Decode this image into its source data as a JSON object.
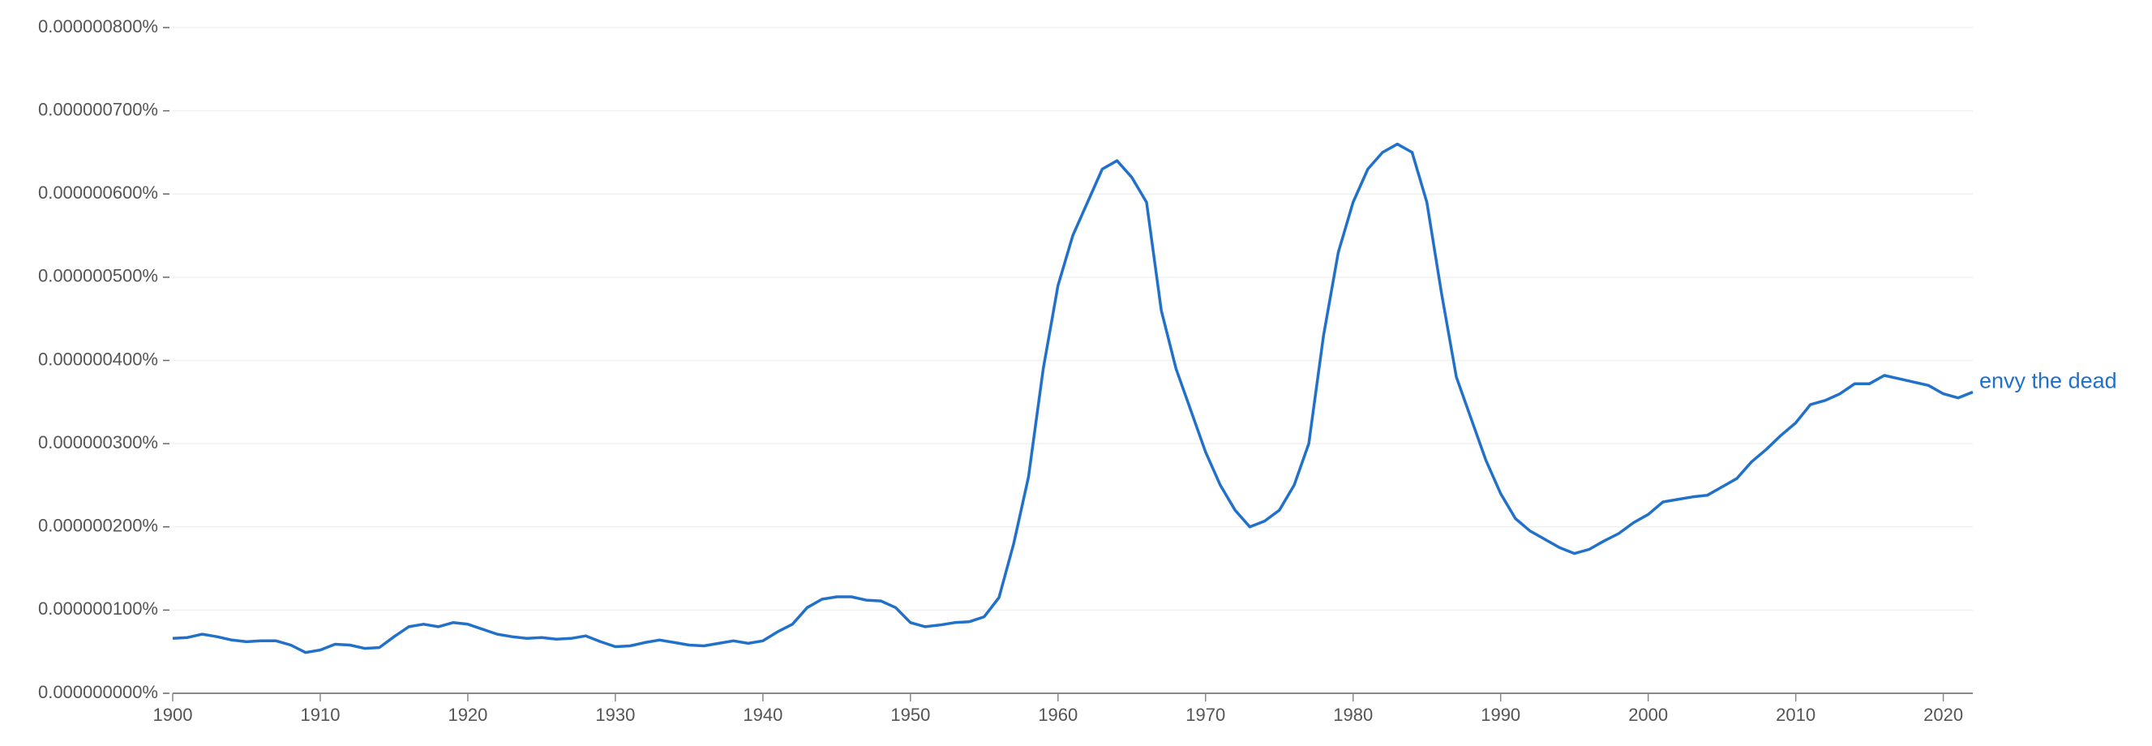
{
  "chart_data": {
    "type": "line",
    "x": [
      1900,
      1901,
      1902,
      1903,
      1904,
      1905,
      1906,
      1907,
      1908,
      1909,
      1910,
      1911,
      1912,
      1913,
      1914,
      1915,
      1916,
      1917,
      1918,
      1919,
      1920,
      1921,
      1922,
      1923,
      1924,
      1925,
      1926,
      1927,
      1928,
      1929,
      1930,
      1931,
      1932,
      1933,
      1934,
      1935,
      1936,
      1937,
      1938,
      1939,
      1940,
      1941,
      1942,
      1943,
      1944,
      1945,
      1946,
      1947,
      1948,
      1949,
      1950,
      1951,
      1952,
      1953,
      1954,
      1955,
      1956,
      1957,
      1958,
      1959,
      1960,
      1961,
      1962,
      1963,
      1964,
      1965,
      1966,
      1967,
      1968,
      1969,
      1970,
      1971,
      1972,
      1973,
      1974,
      1975,
      1976,
      1977,
      1978,
      1979,
      1980,
      1981,
      1982,
      1983,
      1984,
      1985,
      1986,
      1987,
      1988,
      1989,
      1990,
      1991,
      1992,
      1993,
      1994,
      1995,
      1996,
      1997,
      1998,
      1999,
      2000,
      2001,
      2002,
      2003,
      2004,
      2005,
      2006,
      2007,
      2008,
      2009,
      2010,
      2011,
      2012,
      2013,
      2014,
      2015,
      2016,
      2017,
      2018,
      2019,
      2020,
      2021,
      2022
    ],
    "series": [
      {
        "name": "envy the dead",
        "color": "#2170c9",
        "values": [
          6.6e-08,
          6.7e-08,
          7.1e-08,
          6.8e-08,
          6.4e-08,
          6.2e-08,
          6.3e-08,
          6.3e-08,
          5.8e-08,
          4.9e-08,
          5.2e-08,
          5.9e-08,
          5.8e-08,
          5.4e-08,
          5.5e-08,
          6.8e-08,
          8e-08,
          8.3e-08,
          8e-08,
          8.5e-08,
          8.3e-08,
          7.7e-08,
          7.1e-08,
          6.8e-08,
          6.6e-08,
          6.7e-08,
          6.5e-08,
          6.6e-08,
          6.9e-08,
          6.2e-08,
          5.6e-08,
          5.7e-08,
          6.1e-08,
          6.4e-08,
          6.1e-08,
          5.8e-08,
          5.7e-08,
          6e-08,
          6.3e-08,
          6e-08,
          6.3e-08,
          7.4e-08,
          8.3e-08,
          1.03e-07,
          1.13e-07,
          1.16e-07,
          1.16e-07,
          1.12e-07,
          1.11e-07,
          1.03e-07,
          8.5e-08,
          8e-08,
          8.2e-08,
          8.5e-08,
          8.6e-08,
          9.2e-08,
          1.15e-07,
          1.8e-07,
          2.6e-07,
          3.9e-07,
          4.9e-07,
          5.5e-07,
          5.9e-07,
          6.3e-07,
          6.4e-07,
          6.2e-07,
          5.9e-07,
          4.6e-07,
          3.9e-07,
          3.4e-07,
          2.9e-07,
          2.5e-07,
          2.2e-07,
          2e-07,
          2.07e-07,
          2.2e-07,
          2.5e-07,
          3e-07,
          4.3e-07,
          5.3e-07,
          5.9e-07,
          6.3e-07,
          6.5e-07,
          6.6e-07,
          6.5e-07,
          5.9e-07,
          4.8e-07,
          3.8e-07,
          3.3e-07,
          2.8e-07,
          2.4e-07,
          2.1e-07,
          1.95e-07,
          1.85e-07,
          1.75e-07,
          1.68e-07,
          1.73e-07,
          1.83e-07,
          1.92e-07,
          2.05e-07,
          2.15e-07,
          2.3e-07,
          2.33e-07,
          2.36e-07,
          2.38e-07,
          2.48e-07,
          2.58e-07,
          2.78e-07,
          2.93e-07,
          3.1e-07,
          3.25e-07,
          3.47e-07,
          3.52e-07,
          3.6e-07,
          3.72e-07,
          3.72e-07,
          3.82e-07,
          3.78e-07,
          3.74e-07,
          3.7e-07,
          3.6e-07,
          3.55e-07,
          3.62e-07
        ]
      }
    ],
    "xlim": [
      1900,
      2022
    ],
    "xticks": [
      1900,
      1910,
      1920,
      1930,
      1940,
      1950,
      1960,
      1970,
      1980,
      1990,
      2000,
      2010,
      2020
    ],
    "ylim": [
      0,
      8e-07
    ],
    "yticks": [
      {
        "value": 0,
        "label": "0.000000000%"
      },
      {
        "value": 1e-07,
        "label": "0.000000100%"
      },
      {
        "value": 2e-07,
        "label": "0.000000200%"
      },
      {
        "value": 3e-07,
        "label": "0.000000300%"
      },
      {
        "value": 4e-07,
        "label": "0.000000400%"
      },
      {
        "value": 5e-07,
        "label": "0.000000500%"
      },
      {
        "value": 6e-07,
        "label": "0.000000600%"
      },
      {
        "value": 7e-07,
        "label": "0.000000700%"
      },
      {
        "value": 8e-07,
        "label": "0.000000800%"
      }
    ],
    "grid": true
  }
}
